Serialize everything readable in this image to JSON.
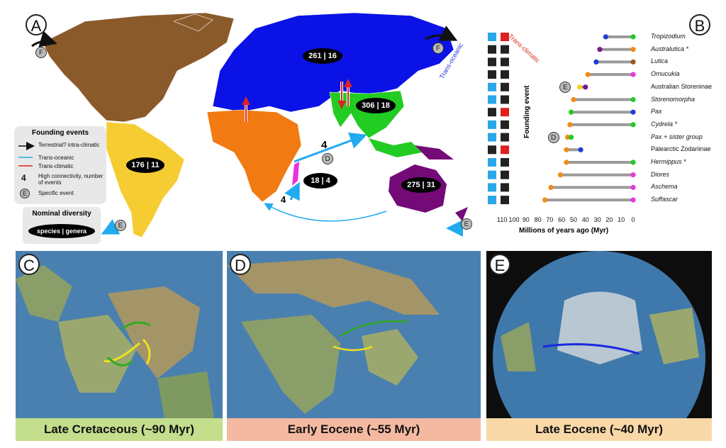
{
  "panels": {
    "a": "A",
    "b": "B",
    "c": "C",
    "d": "D",
    "e": "E"
  },
  "regions": {
    "palearctic": "261 | 16",
    "oriental": "306 | 18",
    "neotropic": "176 | 11",
    "madagascar": "18 | 4",
    "australia": "275 | 31"
  },
  "map_labels": {
    "count_four": "4",
    "count_four_b": "4",
    "event_f1": "F",
    "event_f2": "F",
    "event_e1": "E",
    "event_e2": "E",
    "event_d": "D"
  },
  "legend": {
    "title": "Founding events",
    "terrestrial": "Terrestrial? intra-climatic",
    "trans_oceanic": "Trans-oceanic",
    "trans_climatic": "Trans-climatic",
    "high_conn_num": "4",
    "high_conn": "High connectivity, number of events",
    "specific_letter": "E",
    "specific": "Specific event",
    "diversity_title": "Nominal diversity",
    "diversity_oval": "species | genera"
  },
  "chart_data": {
    "type": "dumbbell",
    "column_headers": [
      "Trans-oceanic",
      "Trans-climatic"
    ],
    "ylabel": "Founding event",
    "xlabel": "Millions of years ago (Myr)",
    "ticks": [
      "110",
      "100",
      "90",
      "80",
      "70",
      "60",
      "50",
      "40",
      "30",
      "20",
      "10",
      "0"
    ],
    "rows": [
      {
        "name": "Tropizodium",
        "italic": true,
        "start": 23,
        "end": 0,
        "start_color": "#1f3fd6",
        "end_color": "#22cc22",
        "trans_oceanic": true,
        "trans_climatic": true
      },
      {
        "name": "Australutica *",
        "italic": true,
        "start": 28,
        "end": 0,
        "start_color": "#7a1a8a",
        "end_color": "#f08a1a",
        "trans_oceanic": false,
        "trans_climatic": false
      },
      {
        "name": "Lutica",
        "italic": true,
        "start": 31,
        "end": 0,
        "start_color": "#1f3fd6",
        "end_color": "#9a5a2a",
        "trans_oceanic": false,
        "trans_climatic": false
      },
      {
        "name": "Omucukia",
        "italic": true,
        "start": 38,
        "end": 0,
        "start_color": "#f08a1a",
        "end_color": "#e83adb",
        "trans_oceanic": false,
        "trans_climatic": false
      },
      {
        "name": "Australian Storeninae",
        "italic": false,
        "start": 45,
        "end": 40,
        "start_color": "#f5d020",
        "end_color": "#7a1a8a",
        "trans_oceanic": true,
        "trans_climatic": false,
        "event": "E"
      },
      {
        "name": "Storenomorpha",
        "italic": true,
        "start": 50,
        "end": 0,
        "start_color": "#f08a1a",
        "end_color": "#22cc22",
        "trans_oceanic": true,
        "trans_climatic": false
      },
      {
        "name": "Pax",
        "italic": true,
        "start": 52,
        "end": 0,
        "start_color": "#22cc22",
        "end_color": "#1f3fd6",
        "trans_oceanic": false,
        "trans_climatic": true
      },
      {
        "name": "Cydrela *",
        "italic": true,
        "start": 53,
        "end": 0,
        "start_color": "#f08a1a",
        "end_color": "#22cc22",
        "trans_oceanic": true,
        "trans_climatic": false
      },
      {
        "name": "Pax + sister group",
        "italic": true,
        "start": 55,
        "end": 52,
        "start_color": "#f08a1a",
        "end_color": "#22cc22",
        "trans_oceanic": true,
        "trans_climatic": false,
        "event": "D"
      },
      {
        "name": "Palearctic Zodariinae",
        "italic": false,
        "start": 56,
        "end": 44,
        "start_color": "#f08a1a",
        "end_color": "#1f3fd6",
        "trans_oceanic": false,
        "trans_climatic": true
      },
      {
        "name": "Hermippus *",
        "italic": true,
        "start": 56,
        "end": 0,
        "start_color": "#f08a1a",
        "end_color": "#22cc22",
        "trans_oceanic": true,
        "trans_climatic": false
      },
      {
        "name": "Diores",
        "italic": true,
        "start": 61,
        "end": 0,
        "start_color": "#f08a1a",
        "end_color": "#e83adb",
        "trans_oceanic": true,
        "trans_climatic": false
      },
      {
        "name": "Aschema",
        "italic": true,
        "start": 69,
        "end": 0,
        "start_color": "#f08a1a",
        "end_color": "#e83adb",
        "trans_oceanic": true,
        "trans_climatic": false
      },
      {
        "name": "Suffascar",
        "italic": true,
        "start": 74,
        "end": 0,
        "start_color": "#f08a1a",
        "end_color": "#e83adb",
        "trans_oceanic": true,
        "trans_climatic": false
      }
    ]
  },
  "bottom": {
    "c_label": "Late Cretaceous (~90 Myr)",
    "d_label": "Early Eocene (~55 Myr)",
    "e_label": "Late Eocene (~40 Myr)",
    "c_color": "#c3de8c",
    "d_color": "#f4b9a0",
    "e_color": "#f9d8a8"
  },
  "colors": {
    "nearctic": "#8b5a2b",
    "palearctic": "#0a12e6",
    "oriental": "#22cc22",
    "afrotropic": "#f27a12",
    "neotropic": "#f6cc33",
    "madagascar": "#ee2fe0",
    "australia": "#740a78",
    "ocean_arrow": "#22aaee",
    "climatic_arrow": "#dd2222"
  }
}
